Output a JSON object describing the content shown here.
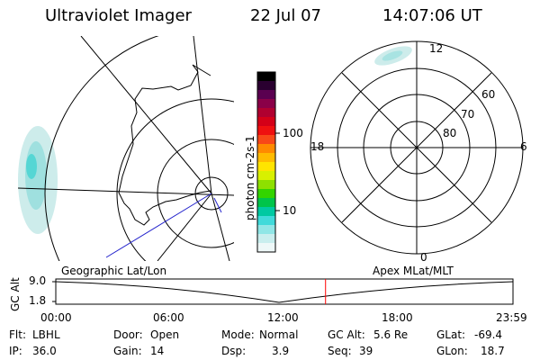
{
  "header": {
    "title": "Ultraviolet Imager",
    "date": "22 Jul 07",
    "time": "14:07:06 UT"
  },
  "color_scale": {
    "unit_label": "photon cm-2s-1",
    "tick_labels": [
      "100",
      "10"
    ],
    "colors": [
      "#000000",
      "#2a0030",
      "#5a0050",
      "#8a0048",
      "#b00030",
      "#d40018",
      "#ef1010",
      "#f84818",
      "#ff8a00",
      "#ffbb00",
      "#ffe400",
      "#d8f000",
      "#8ee000",
      "#33d400",
      "#00c44a",
      "#00c9a2",
      "#40dada",
      "#90e6e6",
      "#c9eeee",
      "#eef8f8"
    ]
  },
  "polar_plot": {
    "hour_labels": [
      "12",
      "18",
      "6",
      "0"
    ],
    "lat_labels": [
      "60",
      "70",
      "80"
    ]
  },
  "altitude_strip": {
    "ylabel": "GC Alt",
    "y_ticks": [
      "9.0",
      "1.8"
    ],
    "left_caption": "Geographic Lat/Lon",
    "right_caption": "Apex MLat/MLT",
    "x_ticks": [
      "00:00",
      "06:00",
      "12:00",
      "18:00",
      "23:59"
    ],
    "current_time_fraction": 0.59,
    "marker_color": "#ff0000"
  },
  "footer": {
    "row1": [
      {
        "label": "Flt:",
        "value": "LBHL"
      },
      {
        "label": "Door:",
        "value": "Open"
      },
      {
        "label": "Mode:",
        "value": "Normal"
      },
      {
        "label": "GC Alt:",
        "value": "5.6 Re"
      },
      {
        "label": "GLat:",
        "value": "-69.4"
      }
    ],
    "row2": [
      {
        "label": "IP:",
        "value": "36.0"
      },
      {
        "label": "Gain:",
        "value": "14"
      },
      {
        "label": "Dsp:",
        "value": "3.9"
      },
      {
        "label": "Seq:",
        "value": "39"
      },
      {
        "label": "GLon:",
        "value": "18.7"
      }
    ]
  }
}
